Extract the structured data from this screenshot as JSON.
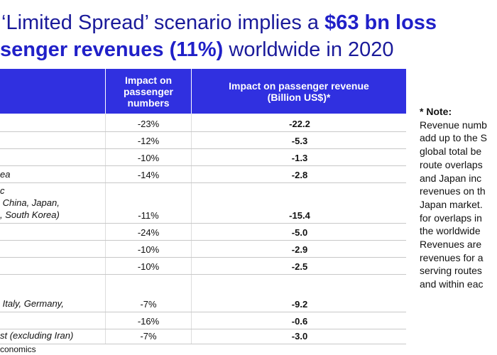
{
  "title": {
    "line1": [
      "‘Limited Spread’ scenario implies a ",
      "$63 bn loss"
    ],
    "line2": [
      "senger revenues (11%)",
      " worldwide in 2020"
    ]
  },
  "table": {
    "headers": [
      "Impact on passenger numbers",
      "Impact on passenger revenue (Billion US$)*"
    ],
    "rows": [
      {
        "passengers": "-23%",
        "revenue": "-22.2"
      },
      {
        "passengers": "-12%",
        "revenue": "-5.3"
      },
      {
        "passengers": "-10%",
        "revenue": "-1.3"
      },
      {
        "label": "ea",
        "passengers": "-14%",
        "revenue": "-2.8"
      },
      {
        "label": "c\n China, Japan,\n, South Korea)",
        "passengers": "-11%",
        "revenue": "-15.4"
      },
      {
        "passengers": "-24%",
        "revenue": "-5.0"
      },
      {
        "passengers": "-10%",
        "revenue": "-2.9"
      },
      {
        "passengers": "-10%",
        "revenue": "-2.5"
      },
      {
        "label": " Italy, Germany,",
        "passengers": "-7%",
        "revenue": "-9.2"
      },
      {
        "passengers": "-16%",
        "revenue": "-0.6"
      },
      {
        "label": "st (excluding Iran)",
        "passengers": "-7%",
        "revenue": "-3.0"
      }
    ]
  },
  "source": "conomics",
  "note": {
    "heading": "* Note:",
    "lines": [
      "Revenue numb",
      "add up to the S",
      "global total be",
      "route overlaps",
      "and Japan inc",
      "revenues on th",
      "Japan market.",
      "for overlaps in",
      "the worldwide",
      "Revenues are",
      "revenues for a",
      "serving routes",
      "and within eac"
    ]
  }
}
